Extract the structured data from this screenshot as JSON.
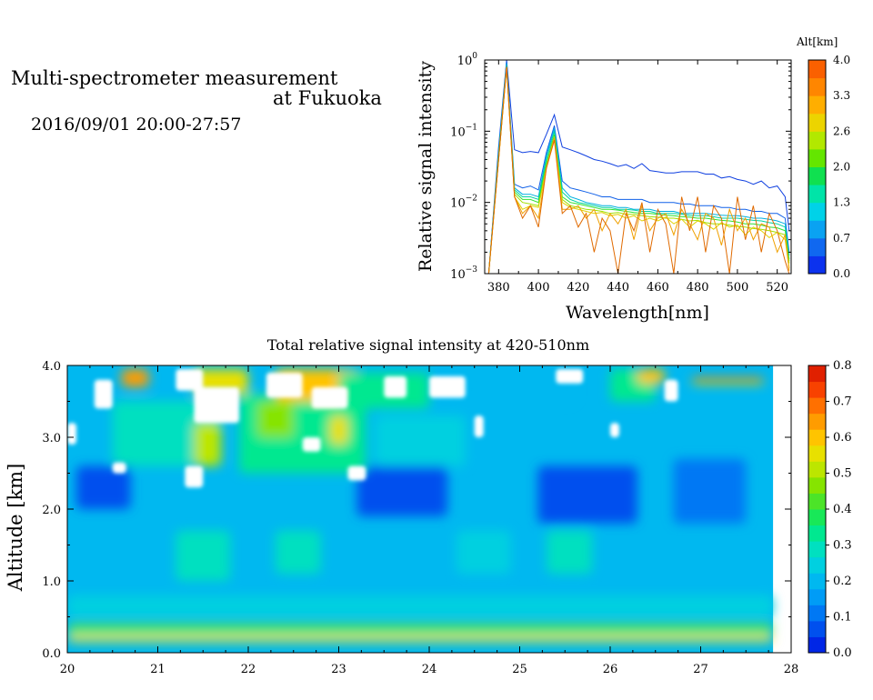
{
  "header": {
    "title_line1": "Multi-spectrometer measurement",
    "title_line2": "at Fukuoka",
    "datetime": "2016/09/01 20:00-27:57"
  },
  "chart_data": [
    {
      "type": "line",
      "xlabel": "Wavelength[nm]",
      "ylabel": "Relative signal intensity",
      "xlim": [
        373,
        527
      ],
      "ylim": [
        0.001,
        1
      ],
      "yscale": "log",
      "xticks": [
        380,
        400,
        420,
        440,
        460,
        480,
        500,
        520
      ],
      "yticks": [
        {
          "value": 1,
          "base": "10",
          "exp": "0"
        },
        {
          "value": 0.1,
          "base": "10",
          "exp": "−1"
        },
        {
          "value": 0.01,
          "base": "10",
          "exp": "−2"
        },
        {
          "value": 0.001,
          "base": "10",
          "exp": "−3"
        }
      ],
      "x": [
        375,
        380,
        384,
        388,
        392,
        396,
        400,
        404,
        408,
        412,
        416,
        420,
        424,
        428,
        432,
        436,
        440,
        444,
        448,
        452,
        456,
        460,
        464,
        468,
        472,
        476,
        480,
        484,
        488,
        492,
        496,
        500,
        504,
        508,
        512,
        516,
        520,
        524,
        526
      ],
      "series": [
        {
          "altitude": 0.0,
          "color": "#1040e0",
          "values": [
            0.001,
            0.06,
            1.0,
            0.055,
            0.05,
            0.052,
            0.05,
            0.09,
            0.17,
            0.06,
            0.055,
            0.05,
            0.045,
            0.04,
            0.038,
            0.035,
            0.032,
            0.034,
            0.03,
            0.035,
            0.028,
            0.027,
            0.026,
            0.026,
            0.027,
            0.027,
            0.027,
            0.025,
            0.025,
            0.022,
            0.023,
            0.021,
            0.02,
            0.018,
            0.02,
            0.016,
            0.017,
            0.012,
            0.004
          ]
        },
        {
          "altitude": 0.4,
          "color": "#1060e8",
          "values": [
            0.001,
            0.05,
            0.95,
            0.018,
            0.016,
            0.017,
            0.015,
            0.05,
            0.12,
            0.02,
            0.016,
            0.015,
            0.014,
            0.013,
            0.012,
            0.012,
            0.011,
            0.011,
            0.011,
            0.011,
            0.01,
            0.01,
            0.01,
            0.01,
            0.0095,
            0.0095,
            0.009,
            0.009,
            0.009,
            0.0085,
            0.0085,
            0.008,
            0.008,
            0.0075,
            0.0075,
            0.007,
            0.007,
            0.006,
            0.002
          ]
        },
        {
          "altitude": 0.9,
          "color": "#00b0e0",
          "values": [
            0.001,
            0.05,
            0.9,
            0.016,
            0.013,
            0.013,
            0.012,
            0.045,
            0.11,
            0.016,
            0.012,
            0.011,
            0.01,
            0.0095,
            0.009,
            0.009,
            0.0085,
            0.0085,
            0.008,
            0.008,
            0.008,
            0.0075,
            0.0075,
            0.0075,
            0.007,
            0.007,
            0.007,
            0.007,
            0.0068,
            0.0066,
            0.0065,
            0.0065,
            0.0063,
            0.006,
            0.006,
            0.0058,
            0.0055,
            0.005,
            0.0018
          ]
        },
        {
          "altitude": 1.5,
          "color": "#00d4a0",
          "values": [
            0.001,
            0.045,
            0.85,
            0.015,
            0.012,
            0.012,
            0.011,
            0.04,
            0.1,
            0.014,
            0.011,
            0.01,
            0.0095,
            0.009,
            0.0085,
            0.0085,
            0.008,
            0.008,
            0.0078,
            0.0075,
            0.0075,
            0.007,
            0.007,
            0.007,
            0.0068,
            0.0066,
            0.0065,
            0.0065,
            0.0063,
            0.006,
            0.006,
            0.006,
            0.0058,
            0.0056,
            0.0055,
            0.0052,
            0.005,
            0.0045,
            0.0016
          ]
        },
        {
          "altitude": 2.0,
          "color": "#30e030",
          "values": [
            0.001,
            0.045,
            0.8,
            0.014,
            0.011,
            0.011,
            0.01,
            0.035,
            0.09,
            0.012,
            0.01,
            0.0095,
            0.009,
            0.0085,
            0.008,
            0.008,
            0.0078,
            0.0075,
            0.0072,
            0.007,
            0.007,
            0.0068,
            0.0066,
            0.0065,
            0.0063,
            0.0062,
            0.006,
            0.006,
            0.0058,
            0.0056,
            0.0055,
            0.0053,
            0.005,
            0.005,
            0.0048,
            0.0045,
            0.0044,
            0.004,
            0.0015
          ]
        },
        {
          "altitude": 2.6,
          "color": "#a0e000",
          "values": [
            0.001,
            0.04,
            0.8,
            0.013,
            0.01,
            0.0095,
            0.009,
            0.032,
            0.085,
            0.011,
            0.009,
            0.0085,
            0.008,
            0.0078,
            0.0075,
            0.007,
            0.0072,
            0.0068,
            0.0068,
            0.0065,
            0.0063,
            0.0062,
            0.006,
            0.006,
            0.0058,
            0.0055,
            0.0056,
            0.0052,
            0.005,
            0.005,
            0.0048,
            0.0046,
            0.0045,
            0.0043,
            0.0042,
            0.004,
            0.0038,
            0.0035,
            0.0014
          ]
        },
        {
          "altitude": 3.0,
          "color": "#e0d000",
          "values": [
            0.001,
            0.04,
            0.8,
            0.012,
            0.008,
            0.009,
            0.0085,
            0.03,
            0.08,
            0.01,
            0.0085,
            0.008,
            0.0075,
            0.007,
            0.0072,
            0.0065,
            0.0068,
            0.006,
            0.0065,
            0.0055,
            0.006,
            0.0055,
            0.0062,
            0.005,
            0.0058,
            0.0045,
            0.0055,
            0.005,
            0.0042,
            0.0052,
            0.0045,
            0.0048,
            0.0035,
            0.0045,
            0.004,
            0.0032,
            0.0038,
            0.003,
            0.0012
          ]
        },
        {
          "altitude": 3.4,
          "color": "#f0a000",
          "values": [
            0.001,
            0.04,
            0.8,
            0.012,
            0.007,
            0.009,
            0.006,
            0.03,
            0.08,
            0.008,
            0.008,
            0.009,
            0.006,
            0.008,
            0.004,
            0.007,
            0.005,
            0.008,
            0.003,
            0.009,
            0.004,
            0.006,
            0.007,
            0.0035,
            0.008,
            0.005,
            0.003,
            0.007,
            0.006,
            0.0025,
            0.008,
            0.004,
            0.006,
            0.003,
            0.005,
            0.0045,
            0.002,
            0.0035,
            0.0011
          ]
        },
        {
          "altitude": 3.8,
          "color": "#e06a00",
          "values": [
            0.001,
            0.04,
            0.8,
            0.012,
            0.006,
            0.009,
            0.0045,
            0.03,
            0.075,
            0.007,
            0.009,
            0.0045,
            0.007,
            0.002,
            0.006,
            0.004,
            0.001,
            0.007,
            0.004,
            0.01,
            0.002,
            0.008,
            0.005,
            0.001,
            0.012,
            0.004,
            0.012,
            0.002,
            0.009,
            0.006,
            0.001,
            0.012,
            0.003,
            0.009,
            0.002,
            0.007,
            0.004,
            0.0015,
            0.001
          ]
        }
      ],
      "colorbar": {
        "label": "Alt[km]",
        "range": [
          0,
          4
        ],
        "ticks": [
          "0.0",
          "0.7",
          "1.3",
          "2.0",
          "2.6",
          "3.3",
          "4.0"
        ],
        "colors": [
          "#0c32ee",
          "#1068f0",
          "#0aa2f2",
          "#00d2e8",
          "#00e4a8",
          "#10e050",
          "#64e600",
          "#b2e800",
          "#ecd400",
          "#ffae00",
          "#ff8600",
          "#fa6000"
        ]
      }
    },
    {
      "type": "heatmap",
      "title": "Total relative signal intensity at 420-510nm",
      "ylabel": "Altitude [km]",
      "xlim": [
        20,
        28
      ],
      "ylim": [
        0,
        4
      ],
      "xticks": [
        "20",
        "21",
        "22",
        "23",
        "24",
        "25",
        "26",
        "27",
        "28"
      ],
      "yticks": [
        "0.0",
        "1.0",
        "2.0",
        "3.0",
        "4.0"
      ],
      "data_x_end": 27.8,
      "colorbar": {
        "range": [
          0,
          0.8
        ],
        "ticks": [
          "0.0",
          "0.1",
          "0.2",
          "0.3",
          "0.4",
          "0.5",
          "0.6",
          "0.7",
          "0.8"
        ],
        "colors": [
          "#0026e6",
          "#0050ee",
          "#0078f4",
          "#009cf6",
          "#00b8f0",
          "#00d0e0",
          "#00e0c0",
          "#00e890",
          "#18e858",
          "#4ce428",
          "#86e400",
          "#bce600",
          "#e8e000",
          "#ffc400",
          "#ff9c00",
          "#ff7000",
          "#f84200",
          "#e02000"
        ]
      },
      "regions": [
        {
          "x": 20,
          "y": 0.15,
          "w": 7.8,
          "h": 0.1,
          "value": 0.55
        },
        {
          "x": 20,
          "y": 0.25,
          "w": 7.8,
          "h": 0.06,
          "value": 0.3
        },
        {
          "x": 20,
          "y": 0.31,
          "w": 7.8,
          "h": 0.1,
          "value": 0.42
        },
        {
          "x": 20,
          "y": 0.5,
          "w": 7.8,
          "h": 0.3,
          "value": 0.26
        },
        {
          "x": 21.2,
          "y": 1.0,
          "w": 0.6,
          "h": 0.7,
          "value": 0.27
        },
        {
          "x": 22.3,
          "y": 1.1,
          "w": 0.5,
          "h": 0.6,
          "value": 0.3
        },
        {
          "x": 24.3,
          "y": 1.1,
          "w": 0.6,
          "h": 0.6,
          "value": 0.25
        },
        {
          "x": 25.3,
          "y": 1.1,
          "w": 0.5,
          "h": 0.6,
          "value": 0.27
        },
        {
          "x": 20.1,
          "y": 2.0,
          "w": 0.6,
          "h": 0.6,
          "value": 0.08
        },
        {
          "x": 23.2,
          "y": 1.9,
          "w": 1.0,
          "h": 0.7,
          "value": 0.08
        },
        {
          "x": 25.2,
          "y": 1.8,
          "w": 1.1,
          "h": 0.8,
          "value": 0.07
        },
        {
          "x": 26.7,
          "y": 1.8,
          "w": 0.8,
          "h": 0.9,
          "value": 0.09
        },
        {
          "x": 20.5,
          "y": 2.6,
          "w": 1.2,
          "h": 0.9,
          "value": 0.3
        },
        {
          "x": 21.9,
          "y": 2.5,
          "w": 1.4,
          "h": 1.1,
          "value": 0.35
        },
        {
          "x": 23.4,
          "y": 2.6,
          "w": 1.0,
          "h": 0.7,
          "value": 0.25
        },
        {
          "x": 21.4,
          "y": 2.6,
          "w": 0.3,
          "h": 0.6,
          "value": 0.52
        },
        {
          "x": 22.1,
          "y": 3.0,
          "w": 0.4,
          "h": 0.5,
          "value": 0.48
        },
        {
          "x": 22.9,
          "y": 2.9,
          "w": 0.2,
          "h": 0.4,
          "value": 0.55
        },
        {
          "x": 20.6,
          "y": 3.7,
          "w": 0.3,
          "h": 0.25,
          "value": 0.65
        },
        {
          "x": 21.4,
          "y": 3.6,
          "w": 0.6,
          "h": 0.35,
          "value": 0.55
        },
        {
          "x": 22.3,
          "y": 3.5,
          "w": 0.9,
          "h": 0.45,
          "value": 0.6
        },
        {
          "x": 23.0,
          "y": 3.4,
          "w": 1.0,
          "h": 0.5,
          "value": 0.35
        },
        {
          "x": 24.4,
          "y": 3.5,
          "w": 1.2,
          "h": 0.45,
          "value": 0.22
        },
        {
          "x": 26.0,
          "y": 3.5,
          "w": 0.5,
          "h": 0.45,
          "value": 0.35
        },
        {
          "x": 26.3,
          "y": 3.75,
          "w": 0.3,
          "h": 0.2,
          "value": 0.6
        },
        {
          "x": 26.9,
          "y": 3.74,
          "w": 0.8,
          "h": 0.05,
          "value": 0.55
        },
        {
          "x": 26.9,
          "y": 3.79,
          "w": 0.8,
          "h": 0.04,
          "value": 0.78
        }
      ],
      "gaps": [
        {
          "x": 20.3,
          "y": 3.4,
          "w": 0.2,
          "h": 0.4
        },
        {
          "x": 20.0,
          "y": 2.9,
          "w": 0.1,
          "h": 0.3
        },
        {
          "x": 20.5,
          "y": 2.5,
          "w": 0.15,
          "h": 0.15
        },
        {
          "x": 21.3,
          "y": 2.3,
          "w": 0.2,
          "h": 0.3
        },
        {
          "x": 21.2,
          "y": 3.65,
          "w": 0.3,
          "h": 0.3
        },
        {
          "x": 21.4,
          "y": 3.2,
          "w": 0.5,
          "h": 0.5
        },
        {
          "x": 22.2,
          "y": 3.55,
          "w": 0.4,
          "h": 0.35
        },
        {
          "x": 22.7,
          "y": 3.4,
          "w": 0.4,
          "h": 0.3
        },
        {
          "x": 23.5,
          "y": 3.55,
          "w": 0.25,
          "h": 0.3
        },
        {
          "x": 24.0,
          "y": 3.55,
          "w": 0.4,
          "h": 0.3
        },
        {
          "x": 24.5,
          "y": 3.0,
          "w": 0.1,
          "h": 0.3
        },
        {
          "x": 25.4,
          "y": 3.75,
          "w": 0.3,
          "h": 0.2
        },
        {
          "x": 26.0,
          "y": 3.0,
          "w": 0.1,
          "h": 0.2
        },
        {
          "x": 26.6,
          "y": 3.5,
          "w": 0.15,
          "h": 0.3
        },
        {
          "x": 22.6,
          "y": 2.8,
          "w": 0.2,
          "h": 0.2
        },
        {
          "x": 23.1,
          "y": 2.4,
          "w": 0.2,
          "h": 0.2
        }
      ]
    }
  ]
}
